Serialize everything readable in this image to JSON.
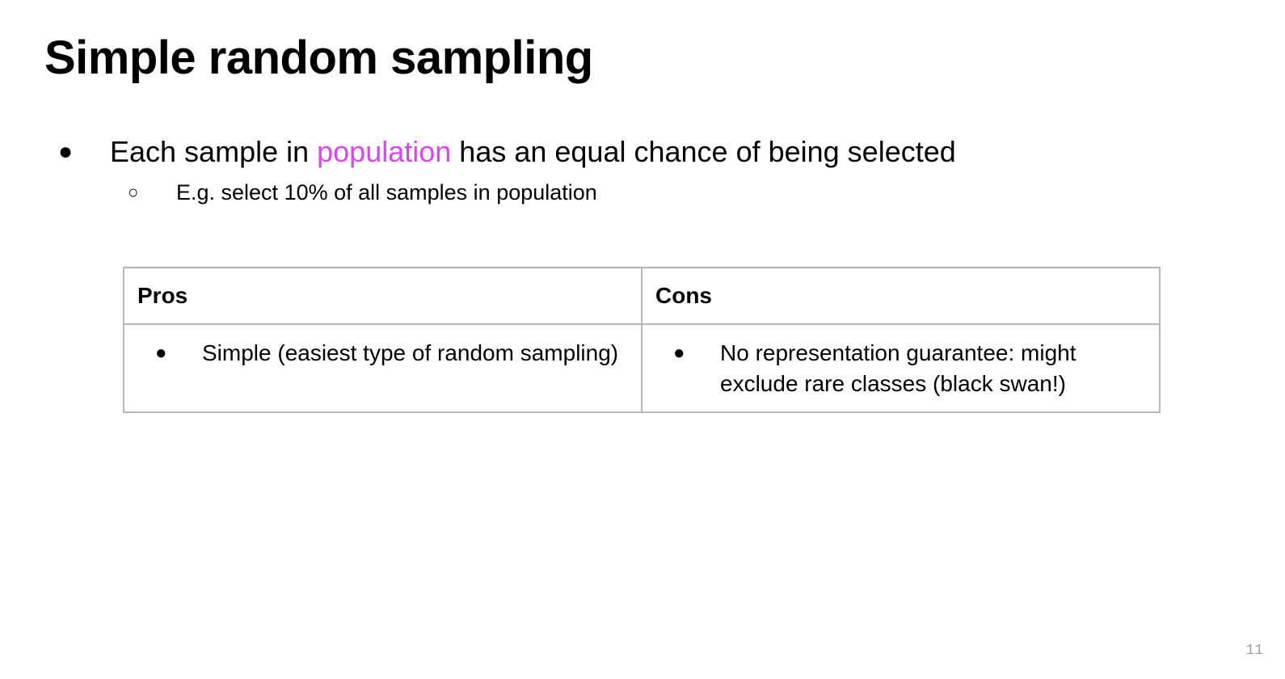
{
  "slide": {
    "title": "Simple random sampling",
    "bullets": [
      {
        "marker": "●",
        "text_before": "Each sample in ",
        "highlight": "population",
        "text_after": " has an equal chance of being selected",
        "highlight_color": "#e040fb",
        "sub": {
          "marker": "○",
          "text": "E.g. select 10% of all samples in population"
        }
      }
    ],
    "table": {
      "headers": [
        "Pros",
        "Cons"
      ],
      "rows": [
        {
          "pros": {
            "marker": "●",
            "text": "Simple (easiest type of random sampling)"
          },
          "cons": {
            "marker": "●",
            "text": "No representation guarantee: might exclude rare classes (black swan!)"
          }
        }
      ],
      "border_color": "#b7b7b7"
    },
    "page_number": "11"
  }
}
